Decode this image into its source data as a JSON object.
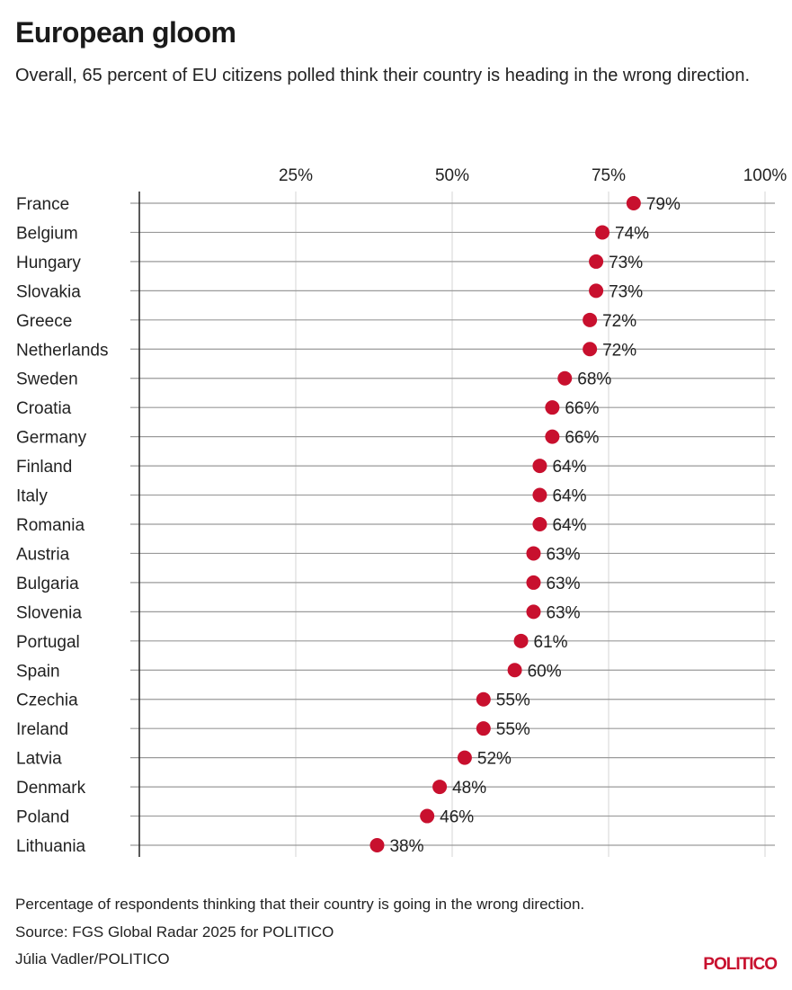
{
  "title": "European gloom",
  "subtitle": "Overall, 65 percent of EU citizens polled think their country is heading in the wrong direction.",
  "footer": {
    "note": "Percentage of respondents thinking that their country is going in the wrong direction.",
    "source": "Source: FGS Global Radar 2025 for POLITICO",
    "credit": "Júlia Vadler/POLITICO",
    "logo": "POLITICO"
  },
  "colors": {
    "dot": "#c8102e",
    "logo": "#c8102e"
  },
  "chart_data": {
    "type": "dot",
    "xlim": [
      0,
      100
    ],
    "x_ticks": [
      25,
      50,
      75,
      100
    ],
    "x_tick_labels": [
      "25%",
      "50%",
      "75%",
      "100%"
    ],
    "x_axis_position": "top",
    "grid": true,
    "categories": [
      "France",
      "Belgium",
      "Hungary",
      "Slovakia",
      "Greece",
      "Netherlands",
      "Sweden",
      "Croatia",
      "Germany",
      "Finland",
      "Italy",
      "Romania",
      "Austria",
      "Bulgaria",
      "Slovenia",
      "Portugal",
      "Spain",
      "Czechia",
      "Ireland",
      "Latvia",
      "Denmark",
      "Poland",
      "Lithuania"
    ],
    "values": [
      79,
      74,
      73,
      73,
      72,
      72,
      68,
      66,
      66,
      64,
      64,
      64,
      63,
      63,
      63,
      61,
      60,
      55,
      55,
      52,
      48,
      46,
      38
    ],
    "data_labels": [
      "79%",
      "74%",
      "73%",
      "73%",
      "72%",
      "72%",
      "68%",
      "66%",
      "66%",
      "64%",
      "64%",
      "64%",
      "63%",
      "63%",
      "63%",
      "61%",
      "60%",
      "55%",
      "55%",
      "52%",
      "48%",
      "46%",
      "38%"
    ]
  }
}
